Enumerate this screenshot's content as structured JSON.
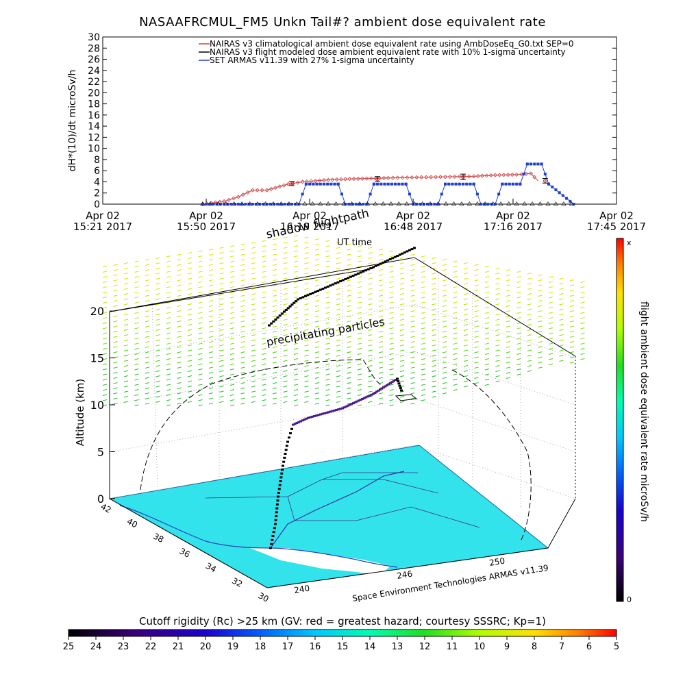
{
  "title": "NASAAFRCMUL_FM5 Unkn Tail#? ambient dose equivalent rate",
  "chart_data": [
    {
      "type": "line",
      "ylabel": "dH*(10)/dt microSv/h",
      "xlabel": "UT time",
      "ylim": [
        0,
        30
      ],
      "yticks": [
        0,
        2,
        4,
        6,
        8,
        10,
        12,
        14,
        16,
        18,
        20,
        22,
        24,
        26,
        28,
        30
      ],
      "xlim_minutes": [
        0,
        144
      ],
      "xticks": [
        {
          "min": 0,
          "l1": "Apr 02",
          "l2": "15:21 2017"
        },
        {
          "min": 29,
          "l1": "Apr 02",
          "l2": "15:50 2017"
        },
        {
          "min": 58,
          "l1": "Apr 02",
          "l2": "16:19 2017"
        },
        {
          "min": 87,
          "l1": "Apr 02",
          "l2": "16:48 2017"
        },
        {
          "min": 115,
          "l1": "Apr 02",
          "l2": "17:16 2017"
        },
        {
          "min": 144,
          "l1": "Apr 02",
          "l2": "17:45 2017"
        }
      ],
      "legend": [
        {
          "label": "NAIRAS v3 climatological ambient dose equivalent rate using AmbDoseEq_G0.txt SEP=0",
          "color": "#d04040",
          "marker": "diamond"
        },
        {
          "label": "NAIRAS v3 flight modeled dose ambient equivalent rate with 10% 1-sigma uncertainty",
          "color": "#000000",
          "marker": "triangle"
        },
        {
          "label": "SET ARMAS v11.39 with 27% 1-sigma uncertainty",
          "color": "#1f3fd0",
          "marker": "square"
        }
      ],
      "series": [
        {
          "name": "NAIRAS v3 climatological ambient dose equivalent rate using AmbDoseEq_G0.txt SEP=0",
          "x": [
            28,
            34,
            38,
            42,
            46,
            52,
            56,
            62,
            68,
            74,
            80,
            88,
            96,
            104,
            110,
            116,
            120,
            122
          ],
          "y": [
            0,
            0.5,
            1.3,
            2.5,
            2.5,
            3.6,
            4.0,
            4.3,
            4.5,
            4.6,
            4.7,
            4.8,
            4.9,
            5.0,
            5.2,
            5.3,
            5.5,
            4.2
          ]
        },
        {
          "name": "NAIRAS v3 flight modeled dose ambient equivalent rate with 10% 1-sigma uncertainty",
          "x": [
            53,
            77,
            101,
            124
          ],
          "y": [
            3.7,
            4.5,
            4.9,
            4.2
          ],
          "err": [
            0.37,
            0.45,
            0.49,
            0.42
          ]
        },
        {
          "name": "SET ARMAS v11.39 with 27% 1-sigma uncertainty",
          "x": [
            28,
            55,
            57,
            66,
            68,
            74,
            76,
            85,
            87,
            94,
            96,
            104,
            106,
            110,
            112,
            117,
            119,
            123,
            125,
            132
          ],
          "y": [
            0,
            0,
            3.6,
            3.6,
            0,
            0,
            3.6,
            3.6,
            0,
            0,
            3.6,
            3.6,
            0,
            0,
            3.6,
            3.6,
            7.2,
            7.2,
            3.6,
            0
          ]
        }
      ]
    },
    {
      "type": "scatter",
      "ylabel": "Altitude (km)",
      "zticks": [
        0,
        5,
        10,
        15,
        20
      ],
      "lat_ticks": [
        42,
        40,
        38,
        36,
        34,
        32,
        30
      ],
      "lon_ticks": [
        240,
        246,
        250
      ],
      "annotations": [
        "shadow flightpath",
        "precipitating particles",
        "UT time"
      ],
      "credit": "Space Environment Technologies ARMAS v11.39",
      "colorbar_label": "flight ambient dose equivalent rate microSv/h",
      "colorbar_top": "x",
      "colorbar_bottom": "0"
    },
    {
      "type": "heatmap",
      "title": "Cutoff rigidity (Rc) >25 km (GV: red = greatest hazard; courtesy SSSRC; Kp=1)",
      "ticks": [
        "25",
        "24",
        "23",
        "22",
        "21",
        "20",
        "19",
        "18",
        "17",
        "16",
        "15",
        "14",
        "13",
        "12",
        "11",
        "10",
        "9",
        "8",
        "7",
        "6",
        "5"
      ],
      "colors": [
        "#000000",
        "#3b0078",
        "#1a00d0",
        "#0060ff",
        "#00c8ff",
        "#00ffb0",
        "#20e020",
        "#b0ff00",
        "#ffe000",
        "#ff8000",
        "#ff0000"
      ]
    }
  ]
}
